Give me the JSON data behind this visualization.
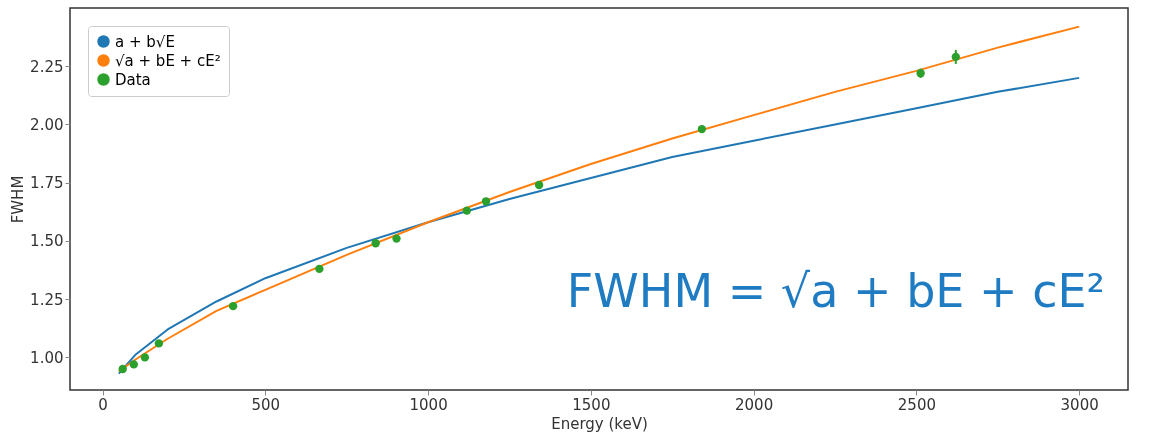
{
  "chart_data": {
    "type": "scatter",
    "xlabel": "Energy (keV)",
    "ylabel": "FWHM",
    "xlim": [
      -100,
      3150
    ],
    "ylim": [
      0.86,
      2.5
    ],
    "xticks": [
      0,
      500,
      1000,
      1500,
      2000,
      2500,
      3000
    ],
    "yticks": [
      {
        "value": 1,
        "label": "1.00"
      },
      {
        "value": 1.25,
        "label": "1.25"
      },
      {
        "value": 1.5,
        "label": "1.50"
      },
      {
        "value": 1.75,
        "label": "1.75"
      },
      {
        "value": 2,
        "label": "2.00"
      },
      {
        "value": 2.25,
        "label": "2.25"
      }
    ],
    "grid": false,
    "legend": "top left",
    "annotations": [
      "FWHM = √a + bE + cE²"
    ],
    "series": [
      {
        "name": "a + b√E",
        "type": "line",
        "color": "#1f77b4",
        "x": [
          50,
          100,
          200,
          350,
          500,
          750,
          1000,
          1250,
          1500,
          1750,
          2000,
          2250,
          2500,
          2750,
          3000
        ],
        "values": [
          0.93,
          1.01,
          1.12,
          1.24,
          1.34,
          1.47,
          1.58,
          1.68,
          1.77,
          1.86,
          1.93,
          2.0,
          2.07,
          2.14,
          2.2
        ]
      },
      {
        "name": "√a + bE + cE²",
        "type": "line",
        "color": "#ff7f0e",
        "x": [
          50,
          100,
          200,
          350,
          500,
          750,
          1000,
          1250,
          1500,
          1750,
          2000,
          2250,
          2500,
          2750,
          3000
        ],
        "values": [
          0.94,
          0.99,
          1.08,
          1.2,
          1.29,
          1.44,
          1.58,
          1.71,
          1.83,
          1.94,
          2.04,
          2.14,
          2.23,
          2.33,
          2.42
        ]
      },
      {
        "name": "Data",
        "color": "#2ca02c",
        "x": [
          62,
          96,
          130,
          173,
          401,
          666,
          839,
          903,
          1119,
          1178,
          1341,
          1841,
          2513,
          2621
        ],
        "values": [
          0.95,
          0.97,
          1.0,
          1.06,
          1.22,
          1.38,
          1.49,
          1.51,
          1.63,
          1.67,
          1.74,
          1.98,
          2.22,
          2.29
        ],
        "errors": [
          null,
          null,
          null,
          null,
          null,
          null,
          null,
          null,
          null,
          null,
          null,
          null,
          0.02,
          0.03
        ]
      }
    ]
  }
}
